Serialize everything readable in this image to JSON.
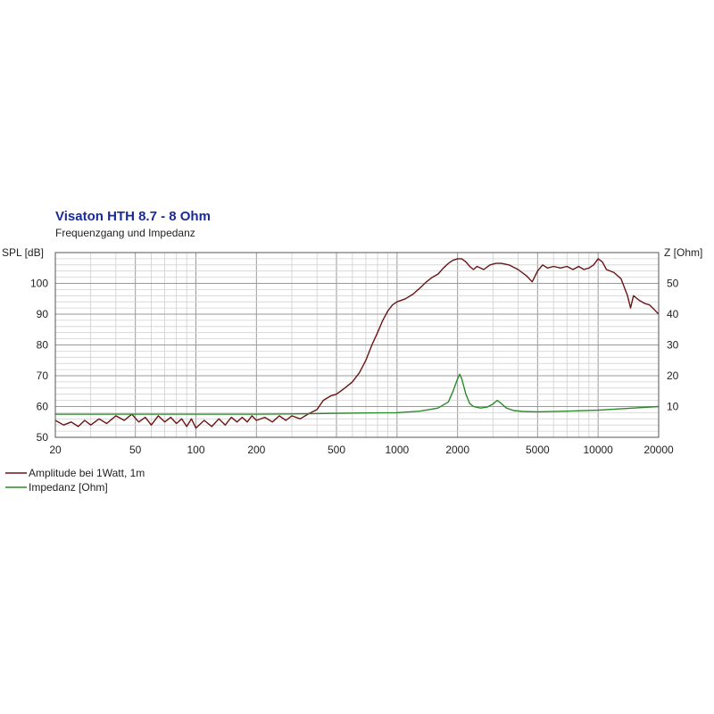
{
  "chart_data": {
    "type": "line",
    "title": "Visaton HTH 8.7 - 8 Ohm",
    "subtitle": "Frequenzgang und Impedanz",
    "x_scale": "log",
    "xlim": [
      20,
      20000
    ],
    "x_ticks": [
      20,
      50,
      100,
      200,
      500,
      1000,
      2000,
      5000,
      10000,
      20000
    ],
    "x_tick_labels": [
      "20",
      "50",
      "100",
      "200",
      "500",
      "1000",
      "2000",
      "5000",
      "10000",
      "20000"
    ],
    "y_left": {
      "label": "SPL [dB]",
      "lim": [
        50,
        110
      ],
      "ticks": [
        50,
        60,
        70,
        80,
        90,
        100
      ],
      "tick_labels": [
        "50",
        "60",
        "70",
        "80",
        "90",
        "100"
      ]
    },
    "y_right": {
      "label": "Z [Ohm]",
      "lim": [
        0,
        60
      ],
      "ticks": [
        10,
        20,
        30,
        40,
        50
      ],
      "tick_labels": [
        "10",
        "20",
        "30",
        "40",
        "50"
      ]
    },
    "grid": true,
    "legend_position": "bottom-left",
    "series": [
      {
        "name": "Amplitude bei 1Watt, 1m",
        "axis": "left",
        "color": "#6b1414",
        "x": [
          20,
          22,
          24,
          26,
          28,
          30,
          33,
          36,
          40,
          44,
          48,
          52,
          56,
          60,
          65,
          70,
          75,
          80,
          85,
          90,
          95,
          100,
          110,
          120,
          130,
          140,
          150,
          160,
          170,
          180,
          190,
          200,
          220,
          240,
          260,
          280,
          300,
          330,
          360,
          400,
          430,
          470,
          500,
          550,
          600,
          650,
          700,
          750,
          800,
          850,
          900,
          950,
          1000,
          1100,
          1200,
          1300,
          1400,
          1500,
          1600,
          1700,
          1800,
          1900,
          2000,
          2100,
          2200,
          2300,
          2400,
          2500,
          2700,
          2900,
          3100,
          3300,
          3600,
          4000,
          4400,
          4700,
          5000,
          5300,
          5600,
          6000,
          6500,
          7000,
          7500,
          8000,
          8500,
          9000,
          9500,
          10000,
          10500,
          11000,
          12000,
          13000,
          14000,
          14500,
          15000,
          16000,
          17000,
          18000,
          19000,
          20000
        ],
        "y": [
          55.5,
          54,
          55,
          53.5,
          55.5,
          54,
          56,
          54.5,
          57,
          55.5,
          57.5,
          55,
          56.5,
          54,
          57,
          55,
          56.5,
          54.5,
          56,
          53.5,
          56,
          53,
          55.5,
          53.5,
          56,
          54,
          56.5,
          55,
          56.5,
          55,
          57,
          55.5,
          56.5,
          55,
          57,
          55.5,
          57,
          56,
          57.5,
          59,
          62,
          63.5,
          64,
          66,
          68,
          71,
          75,
          80,
          84,
          88,
          91,
          93,
          94,
          95,
          96.5,
          98.5,
          100.5,
          102,
          103,
          105,
          106.5,
          107.5,
          108,
          108,
          107,
          105.5,
          104.5,
          105.5,
          104.5,
          106,
          106.5,
          106.5,
          106,
          104.5,
          102.5,
          100.5,
          104,
          106,
          105,
          105.5,
          105,
          105.5,
          104.5,
          105.5,
          104.5,
          105,
          106,
          108,
          107,
          104.5,
          103.5,
          101.5,
          96,
          92,
          96,
          94.5,
          93.5,
          93,
          91.5,
          90
        ]
      },
      {
        "name": "Impedanz [Ohm]",
        "axis": "right",
        "color": "#2a8a2a",
        "x": [
          20,
          30,
          50,
          100,
          200,
          300,
          400,
          500,
          700,
          1000,
          1300,
          1600,
          1800,
          1900,
          2000,
          2050,
          2100,
          2200,
          2300,
          2400,
          2600,
          2800,
          3000,
          3150,
          3300,
          3500,
          3800,
          4200,
          5000,
          7000,
          10000,
          15000,
          20000
        ],
        "y": [
          7.5,
          7.5,
          7.5,
          7.5,
          7.5,
          7.6,
          7.7,
          7.8,
          7.9,
          8,
          8.5,
          9.5,
          11.5,
          15,
          19,
          20.5,
          19,
          14,
          11,
          10,
          9.5,
          9.8,
          10.8,
          12,
          11,
          9.5,
          8.7,
          8.4,
          8.3,
          8.5,
          8.8,
          9.5,
          10
        ]
      }
    ]
  }
}
